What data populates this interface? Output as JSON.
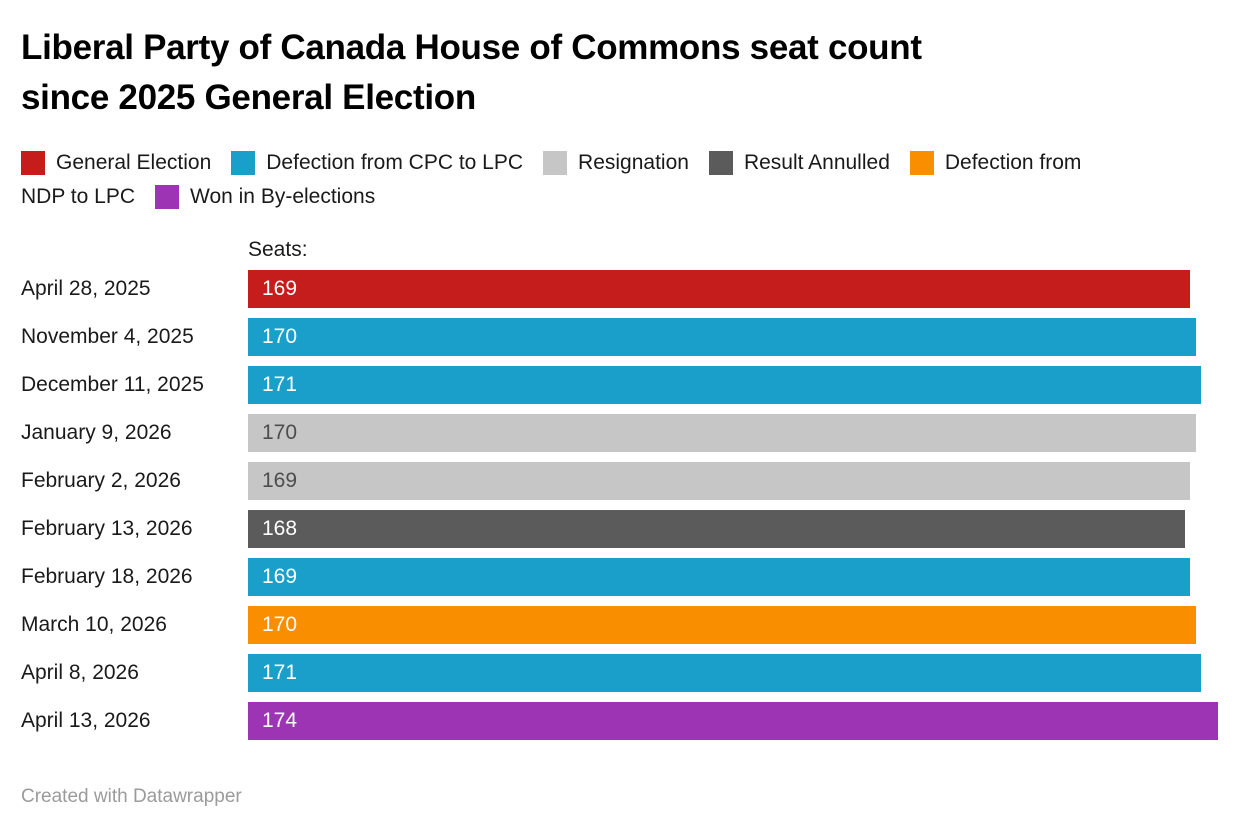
{
  "title": {
    "line1": "Liberal Party of Canada House of Commons seat count",
    "line2": "since 2025 General Election"
  },
  "legend": {
    "line1": [
      {
        "swatch": "#c51c1c",
        "text": "General Election"
      },
      {
        "swatch": "#1a9eca",
        "text": "Defection from CPC to LPC"
      },
      {
        "swatch": "#c6c6c6",
        "text": "Resignation"
      },
      {
        "swatch": "#5b5b5b",
        "text": "Result Annulled"
      },
      {
        "swatch": "#f98e00",
        "text": "Defection from"
      }
    ],
    "line2": [
      {
        "swatch": "",
        "text": "NDP to LPC"
      },
      {
        "swatch": "#9c34b4",
        "text": "Won in By-elections"
      }
    ]
  },
  "axis_label": "Seats:",
  "rows": [
    {
      "date": "April 28, 2025",
      "value": 169,
      "color": "#c51c1c",
      "event": "General Election"
    },
    {
      "date": "November 4, 2025",
      "value": 170,
      "color": "#1a9eca",
      "event": "Defection from CPC to LPC"
    },
    {
      "date": "December 11, 2025",
      "value": 171,
      "color": "#1a9eca",
      "event": "Defection from CPC to LPC"
    },
    {
      "date": "January 9, 2026",
      "value": 170,
      "color": "#c6c6c6",
      "event": "Resignation"
    },
    {
      "date": "February 2, 2026",
      "value": 169,
      "color": "#c6c6c6",
      "event": "Resignation"
    },
    {
      "date": "February 13, 2026",
      "value": 168,
      "color": "#5b5b5b",
      "event": "Result Annulled"
    },
    {
      "date": "February 18, 2026",
      "value": 169,
      "color": "#1a9eca",
      "event": "Defection from CPC to LPC"
    },
    {
      "date": "March 10, 2026",
      "value": 170,
      "color": "#f98e00",
      "event": "Defection from NDP to LPC"
    },
    {
      "date": "April 8, 2026",
      "value": 171,
      "color": "#1a9eca",
      "event": "Defection from CPC to LPC"
    },
    {
      "date": "April 13, 2026",
      "value": 174,
      "color": "#9c34b4",
      "event": "Won in By-elections"
    }
  ],
  "footer": "Created with Datawrapper",
  "chart_data": {
    "type": "bar",
    "orientation": "horizontal",
    "title": "Liberal Party of Canada House of Commons seat count since 2025 General Election",
    "categories": [
      "April 28, 2025",
      "November 4, 2025",
      "December 11, 2025",
      "January 9, 2026",
      "February 2, 2026",
      "February 13, 2026",
      "February 18, 2026",
      "March 10, 2026",
      "April 8, 2026",
      "April 13, 2026"
    ],
    "values": [
      169,
      170,
      171,
      170,
      169,
      168,
      169,
      170,
      171,
      174
    ],
    "event_types": [
      "General Election",
      "Defection from CPC to LPC",
      "Defection from CPC to LPC",
      "Resignation",
      "Resignation",
      "Result Annulled",
      "Defection from CPC to LPC",
      "Defection from NDP to LPC",
      "Defection from CPC to LPC",
      "Won in By-elections"
    ],
    "xlabel": "Seats:",
    "ylabel": "",
    "xlim": [
      0,
      174
    ],
    "grid": false,
    "legend_position": "top",
    "value_labels": "inside-start",
    "legend": [
      {
        "label": "General Election",
        "color": "#c51c1c"
      },
      {
        "label": "Defection from CPC to LPC",
        "color": "#1a9eca"
      },
      {
        "label": "Resignation",
        "color": "#c6c6c6"
      },
      {
        "label": "Result Annulled",
        "color": "#5b5b5b"
      },
      {
        "label": "Defection from NDP to LPC",
        "color": "#f98e00"
      },
      {
        "label": "Won in By-elections",
        "color": "#9c34b4"
      }
    ]
  }
}
